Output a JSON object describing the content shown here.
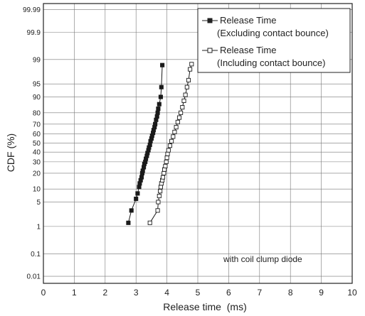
{
  "chart_data": {
    "type": "scatter",
    "xlabel": "Release time  (ms)",
    "ylabel": "CDF  (%)",
    "xlim": [
      0,
      10
    ],
    "x_ticks": [
      "0",
      "1",
      "2",
      "3",
      "4",
      "5",
      "6",
      "7",
      "8",
      "9",
      "10"
    ],
    "y_scale": "normal-probability",
    "y_ticks": [
      "0.01",
      "0.1",
      "1",
      "5",
      "10",
      "20",
      "30",
      "40",
      "50",
      "60",
      "70",
      "80",
      "90",
      "95",
      "99",
      "99.9",
      "99.99"
    ],
    "grid": true,
    "legend_position": "top-right",
    "annotation": "with coil clump diode",
    "series": [
      {
        "name": "Release Time",
        "name_line2": "(Excluding contact bounce)",
        "marker": "filled-square",
        "color": "#1a1a1a",
        "points": [
          [
            2.75,
            1.3
          ],
          [
            2.85,
            3
          ],
          [
            3.0,
            6
          ],
          [
            3.05,
            8
          ],
          [
            3.1,
            11
          ],
          [
            3.12,
            13
          ],
          [
            3.15,
            15
          ],
          [
            3.18,
            17
          ],
          [
            3.2,
            20
          ],
          [
            3.22,
            22
          ],
          [
            3.25,
            25
          ],
          [
            3.27,
            28
          ],
          [
            3.3,
            30
          ],
          [
            3.32,
            33
          ],
          [
            3.35,
            36
          ],
          [
            3.37,
            39
          ],
          [
            3.4,
            42
          ],
          [
            3.42,
            45
          ],
          [
            3.45,
            48
          ],
          [
            3.47,
            52
          ],
          [
            3.5,
            55
          ],
          [
            3.52,
            58
          ],
          [
            3.55,
            61
          ],
          [
            3.57,
            64
          ],
          [
            3.6,
            67
          ],
          [
            3.62,
            70
          ],
          [
            3.65,
            74
          ],
          [
            3.68,
            77
          ],
          [
            3.7,
            80
          ],
          [
            3.72,
            83
          ],
          [
            3.75,
            86
          ],
          [
            3.8,
            90
          ],
          [
            3.82,
            94
          ],
          [
            3.85,
            98.5
          ]
        ]
      },
      {
        "name": "Release Time",
        "name_line2": "(Including contact bounce)",
        "marker": "open-square",
        "color": "#1a1a1a",
        "points": [
          [
            3.45,
            1.3
          ],
          [
            3.7,
            3
          ],
          [
            3.72,
            5
          ],
          [
            3.75,
            7
          ],
          [
            3.78,
            9
          ],
          [
            3.8,
            11
          ],
          [
            3.82,
            13
          ],
          [
            3.85,
            15
          ],
          [
            3.87,
            17
          ],
          [
            3.9,
            20
          ],
          [
            3.92,
            23
          ],
          [
            3.95,
            26
          ],
          [
            3.98,
            30
          ],
          [
            4.0,
            34
          ],
          [
            4.02,
            38
          ],
          [
            4.05,
            42
          ],
          [
            4.1,
            47
          ],
          [
            4.15,
            52
          ],
          [
            4.2,
            57
          ],
          [
            4.25,
            62
          ],
          [
            4.3,
            67
          ],
          [
            4.35,
            72
          ],
          [
            4.4,
            76
          ],
          [
            4.45,
            80
          ],
          [
            4.5,
            84
          ],
          [
            4.55,
            88
          ],
          [
            4.6,
            91
          ],
          [
            4.65,
            94
          ],
          [
            4.7,
            96
          ],
          [
            4.75,
            98
          ],
          [
            4.8,
            98.6
          ]
        ]
      }
    ]
  }
}
